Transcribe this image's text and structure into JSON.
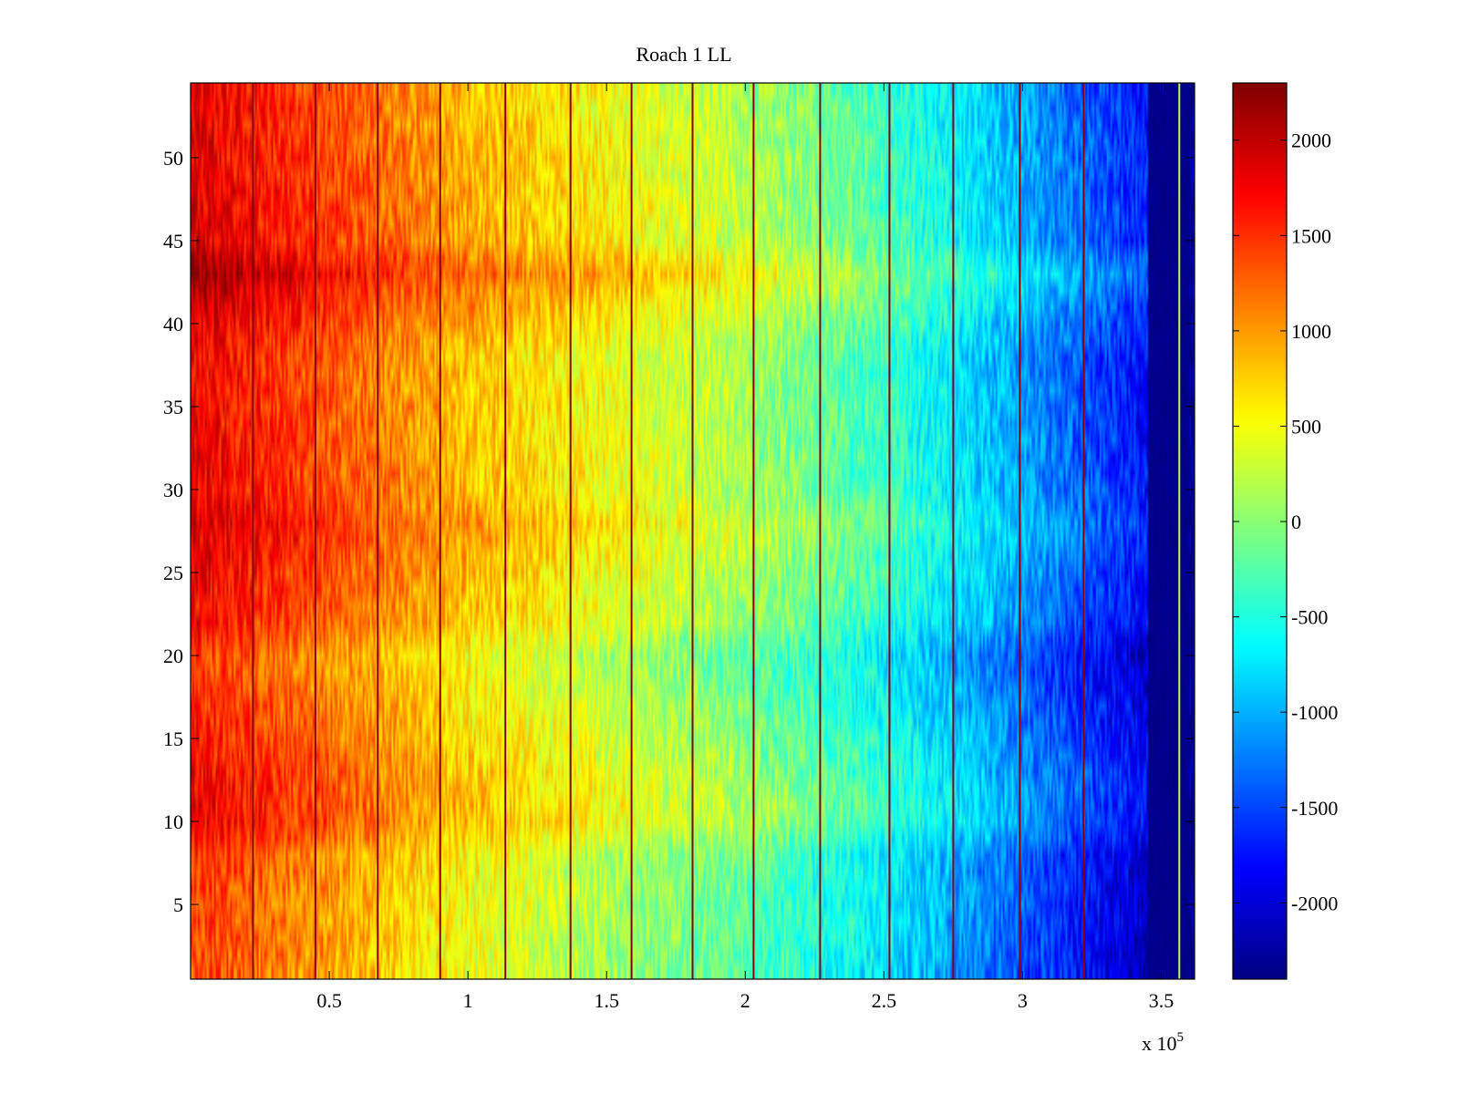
{
  "chart_data": {
    "type": "heatmap",
    "title": "Roach 1 LL",
    "xlabel": "",
    "ylabel": "",
    "x_exponent_label": {
      "base": "x 10",
      "exponent": "5"
    },
    "xlim": [
      0,
      3.62
    ],
    "ylim": [
      0.5,
      54.5
    ],
    "x_ticks": [
      0.5,
      1,
      1.5,
      2,
      2.5,
      3,
      3.5
    ],
    "x_tick_labels": [
      "0.5",
      "1",
      "1.5",
      "2",
      "2.5",
      "3",
      "3.5"
    ],
    "y_ticks": [
      5,
      10,
      15,
      20,
      25,
      30,
      35,
      40,
      45,
      50
    ],
    "y_tick_labels": [
      "5",
      "10",
      "15",
      "20",
      "25",
      "30",
      "35",
      "40",
      "45",
      "50"
    ],
    "colormap": "jet",
    "clim": [
      -2400,
      2300
    ],
    "colorbar_ticks": [
      2000,
      1500,
      1000,
      500,
      0,
      -500,
      -1000,
      -1500,
      -2000
    ],
    "colorbar_tick_labels": [
      "2000",
      "1500",
      "1000",
      "500",
      "0",
      "-500",
      "-1000",
      "-1500",
      "-2000"
    ],
    "grid": false,
    "rows": 54,
    "value_trend": {
      "x": [
        0,
        0.5,
        1.0,
        1.5,
        2.0,
        2.5,
        3.0,
        3.45,
        3.58
      ],
      "z": [
        1650,
        1200,
        700,
        350,
        0,
        -500,
        -1200,
        -1900,
        -2350
      ]
    },
    "row_offsets": {
      "y": [
        1,
        8,
        10,
        12,
        20,
        22,
        26,
        28,
        30,
        38,
        41,
        43,
        45,
        54
      ],
      "dz": [
        -250,
        -150,
        150,
        120,
        -200,
        50,
        200,
        300,
        150,
        100,
        300,
        550,
        250,
        150
      ]
    },
    "discontinuity_columns_x": [
      0.225,
      0.45,
      0.675,
      0.9,
      1.135,
      1.37,
      1.59,
      1.81,
      2.03,
      2.27,
      2.52,
      2.75,
      2.99,
      3.22,
      3.565
    ]
  }
}
